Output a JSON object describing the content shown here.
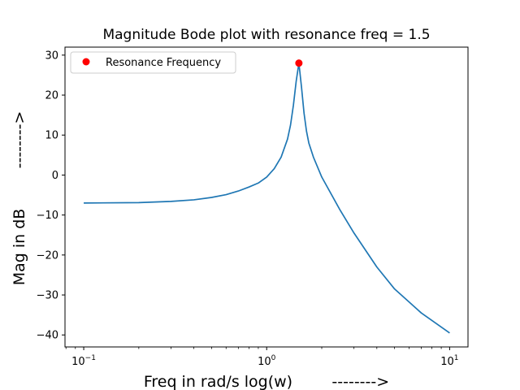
{
  "chart_data": {
    "type": "line",
    "title": "Magnitude Bode plot with resonance freq = 1.5",
    "xlabel": "Freq in rad/s log(w)        -------->",
    "ylabel": "Mag in dB",
    "ylabel_arrow": "-------->",
    "x_scale": "log",
    "xlim": [
      0.079,
      12.6
    ],
    "ylim": [
      -43,
      32
    ],
    "grid": false,
    "legend": {
      "placement": "top-left",
      "entries": [
        "Resonance Frequency"
      ]
    },
    "x_ticks": [
      {
        "value": 0.1,
        "base": "10",
        "exp": "−1"
      },
      {
        "value": 1,
        "base": "10",
        "exp": "0"
      },
      {
        "value": 10,
        "base": "10",
        "exp": "1"
      }
    ],
    "y_ticks": [
      30,
      20,
      10,
      0,
      -10,
      -20,
      -30,
      -40
    ],
    "y_tick_labels": [
      "30",
      "20",
      "10",
      "0",
      "−10",
      "−20",
      "−30",
      "−40"
    ],
    "series": [
      {
        "color": "#1f77b4",
        "x": [
          0.1,
          0.2,
          0.3,
          0.4,
          0.5,
          0.6,
          0.7,
          0.8,
          0.9,
          1.0,
          1.1,
          1.2,
          1.3,
          1.35,
          1.4,
          1.45,
          1.5,
          1.55,
          1.6,
          1.65,
          1.7,
          1.8,
          2.0,
          2.5,
          3.0,
          4.0,
          5.0,
          7.0,
          10.0
        ],
        "y": [
          -7.0,
          -6.9,
          -6.6,
          -6.2,
          -5.6,
          -4.9,
          -4.0,
          -3.0,
          -2.0,
          -0.5,
          1.6,
          4.5,
          9.0,
          12.5,
          17.5,
          23.5,
          28.0,
          22.0,
          15.5,
          11.0,
          8.0,
          4.5,
          -0.5,
          -8.5,
          -14.5,
          -23.0,
          -28.5,
          -34.5,
          -39.5
        ]
      }
    ],
    "marker": {
      "label": "Resonance Frequency",
      "x": 1.5,
      "y": 28.0,
      "color": "#ff0000"
    }
  }
}
